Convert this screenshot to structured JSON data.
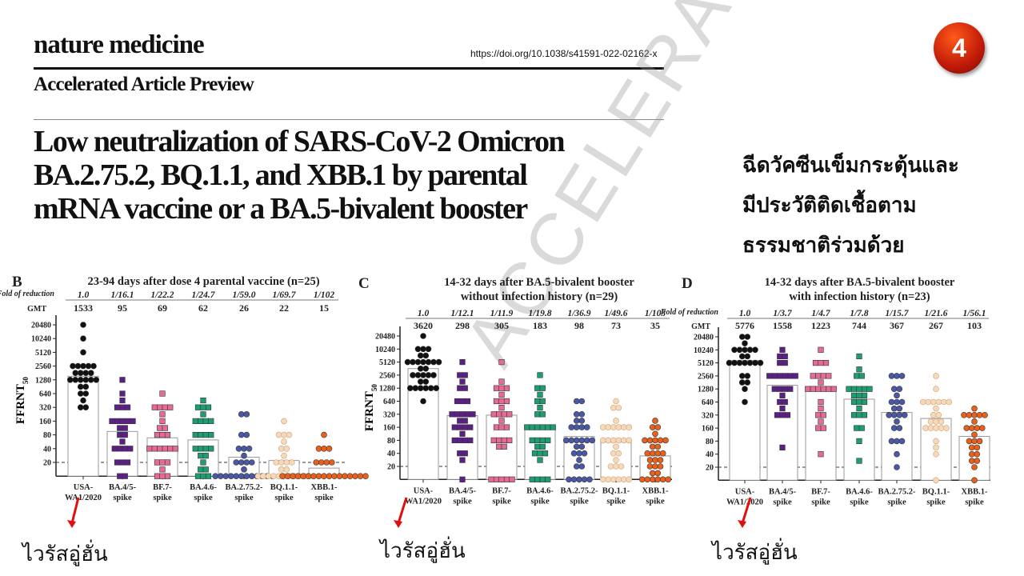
{
  "header": {
    "journal": "nature medicine",
    "doi": "https://doi.org/10.1038/s41591-022-02162-x",
    "section": "Accelerated Article Preview",
    "title_lines": [
      "Low neutralization of SARS-CoV-2 Omicron",
      "BA.2.75.2, BQ.1.1, and XBB.1 by parental",
      "mRNA vaccine or a BA.5-bivalent booster"
    ],
    "watermark": "ACCELERATED ARTICLE PREVIEW"
  },
  "slide": {
    "badge_number": "4",
    "badge_color": "#d0200a",
    "note_lines": [
      "ฉีดวัคซีนเข็มกระตุ้นและ",
      "มีประวัติติดเชื้อตาม",
      "ธรรมชาติร่วมด้วย"
    ],
    "arrow_label": "ไวรัสอู่ฮั่น",
    "arrow_color": "#e01010"
  },
  "chart_data": [
    {
      "panel": "B",
      "type": "scatter",
      "title_lines": [
        "23-94 days after dose 4 parental vaccine (n=25)"
      ],
      "ylabel": "FFRNT",
      "ylabel_sub": "50",
      "yscale": "log2",
      "yticks": [
        20,
        40,
        80,
        160,
        320,
        640,
        1280,
        2560,
        5120,
        10240,
        20480
      ],
      "threshold": 20,
      "fold_label": "Fold of reduction",
      "gmt_label": "GMT",
      "categories": [
        [
          "USA-",
          "WA1/2020"
        ],
        [
          "BA.4/5-",
          "spike"
        ],
        [
          "BF.7-",
          "spike"
        ],
        [
          "BA.4.6-",
          "spike"
        ],
        [
          "BA.2.75.2-",
          "spike"
        ],
        [
          "BQ.1.1-",
          "spike"
        ],
        [
          "XBB.1-",
          "spike"
        ]
      ],
      "fold": [
        "1.0",
        "1/16.1",
        "1/22.2",
        "1/24.7",
        "1/59.0",
        "1/69.7",
        "1/102"
      ],
      "gmt": [
        1533,
        95,
        69,
        62,
        26,
        22,
        15
      ],
      "points": [
        [
          20480,
          10240,
          5120,
          2560,
          2560,
          2560,
          2560,
          2560,
          1810,
          1810,
          1810,
          1810,
          1280,
          1280,
          1280,
          1280,
          1280,
          1280,
          905,
          905,
          640,
          640,
          453,
          320,
          320
        ],
        [
          1280,
          640,
          453,
          320,
          320,
          320,
          160,
          160,
          160,
          160,
          160,
          113,
          113,
          80,
          80,
          57,
          40,
          40,
          40,
          40,
          20,
          20,
          20,
          10,
          10
        ],
        [
          640,
          320,
          320,
          320,
          320,
          226,
          160,
          113,
          113,
          80,
          80,
          80,
          40,
          40,
          40,
          40,
          40,
          40,
          20,
          20,
          20,
          14,
          10,
          10,
          10
        ],
        [
          453,
          320,
          320,
          320,
          226,
          160,
          160,
          160,
          160,
          80,
          80,
          80,
          80,
          40,
          40,
          40,
          40,
          28,
          28,
          20,
          14,
          14,
          10,
          10,
          10
        ],
        [
          226,
          226,
          80,
          80,
          40,
          40,
          40,
          28,
          20,
          20,
          20,
          20,
          14,
          10,
          10,
          10,
          10,
          10,
          10,
          10,
          10,
          10,
          10,
          10,
          10
        ],
        [
          160,
          80,
          80,
          80,
          57,
          40,
          40,
          28,
          20,
          20,
          20,
          20,
          14,
          14,
          10,
          10,
          10,
          10,
          10,
          10,
          10,
          10,
          10,
          10,
          10
        ],
        [
          80,
          40,
          40,
          40,
          20,
          20,
          20,
          20,
          10,
          10,
          10,
          10,
          10,
          10,
          10,
          10,
          10,
          10,
          10,
          10,
          10,
          10,
          10,
          10,
          10
        ]
      ]
    },
    {
      "panel": "C",
      "type": "scatter",
      "title_lines": [
        "14-32 days after BA.5-bivalent booster",
        "without infection history (n=29)"
      ],
      "ylabel": "FFRNT",
      "ylabel_sub": "50",
      "yscale": "log2",
      "yticks": [
        20,
        40,
        80,
        160,
        320,
        640,
        1280,
        2560,
        5120,
        10240,
        20480
      ],
      "threshold": 20,
      "categories": [
        [
          "USA-",
          "WA1/2020"
        ],
        [
          "BA.4/5-",
          "spike"
        ],
        [
          "BF.7-",
          "spike"
        ],
        [
          "BA.4.6-",
          "spike"
        ],
        [
          "BA.2.75.2-",
          "spike"
        ],
        [
          "BQ.1.1-",
          "spike"
        ],
        [
          "XBB.1-",
          "spike"
        ]
      ],
      "fold": [
        "1.0",
        "1/12.1",
        "1/11.9",
        "1/19.8",
        "1/36.9",
        "1/49.6",
        "1/103"
      ],
      "gmt": [
        3620,
        298,
        305,
        183,
        98,
        73,
        35
      ],
      "points": [
        [
          20480,
          10240,
          10240,
          10240,
          7240,
          7240,
          5120,
          5120,
          5120,
          5120,
          5120,
          5120,
          5120,
          3620,
          3620,
          2560,
          2560,
          2560,
          2560,
          2560,
          1810,
          1810,
          1280,
          1280,
          1280,
          1280,
          1280,
          1280,
          640
        ],
        [
          5120,
          2560,
          2560,
          1810,
          1280,
          1280,
          640,
          640,
          640,
          320,
          320,
          320,
          320,
          320,
          226,
          226,
          160,
          160,
          160,
          160,
          113,
          80,
          80,
          80,
          80,
          40,
          40,
          28,
          10
        ],
        [
          5120,
          1810,
          1280,
          1280,
          1280,
          905,
          640,
          640,
          640,
          453,
          320,
          320,
          320,
          320,
          226,
          160,
          160,
          160,
          80,
          80,
          80,
          80,
          57,
          57,
          10,
          10,
          10,
          10,
          10
        ],
        [
          2560,
          1280,
          1280,
          905,
          640,
          640,
          453,
          320,
          320,
          160,
          160,
          160,
          160,
          160,
          160,
          80,
          80,
          80,
          80,
          57,
          57,
          40,
          40,
          40,
          28,
          10,
          10,
          10,
          10
        ],
        [
          640,
          640,
          320,
          320,
          226,
          226,
          160,
          160,
          160,
          160,
          80,
          80,
          80,
          80,
          80,
          80,
          57,
          57,
          40,
          40,
          40,
          28,
          20,
          20,
          10,
          10,
          10,
          10,
          10
        ],
        [
          640,
          453,
          453,
          226,
          160,
          160,
          160,
          160,
          160,
          160,
          80,
          80,
          80,
          80,
          80,
          80,
          57,
          40,
          40,
          28,
          20,
          20,
          20,
          10,
          10,
          10,
          10,
          10,
          10
        ],
        [
          226,
          160,
          160,
          113,
          80,
          80,
          80,
          80,
          80,
          57,
          57,
          40,
          40,
          40,
          40,
          28,
          28,
          28,
          20,
          20,
          20,
          14,
          14,
          10,
          10,
          10,
          10,
          10,
          10
        ]
      ]
    },
    {
      "panel": "D",
      "type": "scatter",
      "title_lines": [
        "14-32 days after BA.5-bivalent booster",
        "with infection history (n=23)"
      ],
      "yscale": "log2",
      "yticks": [
        20,
        40,
        80,
        160,
        320,
        640,
        1280,
        2560,
        5120,
        10240,
        20480
      ],
      "threshold": 20,
      "fold_label": "Fold of reduction",
      "gmt_label": "GMT",
      "categories": [
        [
          "USA-",
          "WA1/2020"
        ],
        [
          "BA.4/5-",
          "spike"
        ],
        [
          "BF.7-",
          "spike"
        ],
        [
          "BA.4.6-",
          "spike"
        ],
        [
          "BA.2.75.2-",
          "spike"
        ],
        [
          "BQ.1.1-",
          "spike"
        ],
        [
          "XBB.1-",
          "spike"
        ]
      ],
      "fold": [
        "1.0",
        "1/3.7",
        "1/4.7",
        "1/7.8",
        "1/15.7",
        "1/21.6",
        "1/56.1"
      ],
      "gmt": [
        5776,
        1558,
        1223,
        744,
        367,
        267,
        103
      ],
      "points": [
        [
          20480,
          20480,
          14480,
          10240,
          10240,
          10240,
          10240,
          10240,
          7240,
          7240,
          5120,
          5120,
          5120,
          5120,
          5120,
          5120,
          5120,
          2560,
          2560,
          1810,
          1810,
          1280,
          640
        ],
        [
          10240,
          7240,
          7240,
          5120,
          5120,
          2560,
          2560,
          2560,
          2560,
          2560,
          2560,
          1280,
          1280,
          1280,
          1280,
          905,
          640,
          640,
          453,
          320,
          320,
          320,
          57
        ],
        [
          10240,
          5120,
          5120,
          5120,
          2560,
          2560,
          2560,
          2560,
          1810,
          1280,
          1280,
          1280,
          1280,
          1280,
          1280,
          640,
          453,
          320,
          320,
          226,
          160,
          160,
          40
        ],
        [
          7240,
          3620,
          2560,
          2560,
          1280,
          1280,
          1280,
          1280,
          905,
          905,
          640,
          640,
          453,
          320,
          320,
          320,
          160,
          160,
          80,
          28,
          1280,
          905,
          640
        ],
        [
          2560,
          2560,
          2560,
          1280,
          1280,
          905,
          640,
          640,
          640,
          453,
          320,
          320,
          320,
          320,
          226,
          160,
          160,
          80,
          80,
          80,
          40,
          20,
          453
        ],
        [
          2560,
          1280,
          640,
          640,
          640,
          640,
          640,
          640,
          453,
          320,
          226,
          226,
          160,
          160,
          160,
          160,
          80,
          57,
          40,
          160,
          320,
          226,
          10
        ],
        [
          453,
          320,
          320,
          320,
          320,
          320,
          226,
          160,
          160,
          160,
          160,
          113,
          80,
          80,
          80,
          57,
          57,
          40,
          40,
          28,
          28,
          20,
          10
        ]
      ]
    }
  ],
  "colors": {
    "groups": [
      "#111111",
      "#5b1f86",
      "#e66a95",
      "#1d9e72",
      "#4a58a6",
      "#f7d9b8",
      "#e9601c"
    ],
    "markers": [
      "circle",
      "square",
      "square",
      "square",
      "circle",
      "circle",
      "circle"
    ]
  }
}
